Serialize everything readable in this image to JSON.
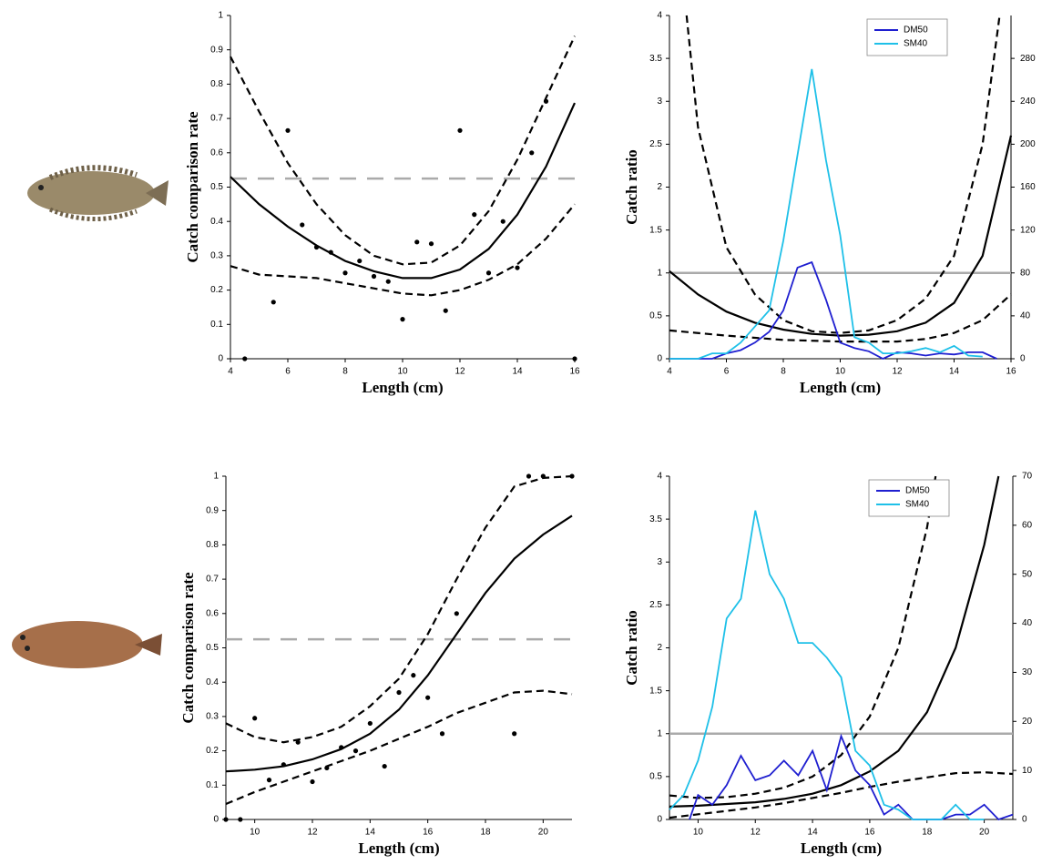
{
  "chart_data": [
    {
      "type": "scatter",
      "xlabel": "Length (cm)",
      "ylabel": "Catch comparison rate",
      "xlim": [
        4,
        16
      ],
      "xticks": [
        4,
        6,
        8,
        10,
        12,
        14,
        16
      ],
      "ylim": [
        0,
        1
      ],
      "yticks": [
        0,
        0.1,
        0.2,
        0.3,
        0.4,
        0.5,
        0.6,
        0.7,
        0.8,
        0.9,
        1
      ],
      "hline": {
        "value": 0.525,
        "color": "#aaaaaa",
        "dash": true
      },
      "series": [
        {
          "mode": "markers",
          "color": "#000000",
          "x": [
            4.5,
            5.5,
            6,
            6.5,
            7,
            7.5,
            8,
            8.5,
            9,
            9.5,
            10,
            10.5,
            11,
            11.5,
            12,
            12.5,
            13,
            13.5,
            14,
            14.5,
            15,
            16
          ],
          "values": [
            0,
            0.165,
            0.665,
            0.39,
            0.325,
            0.31,
            0.25,
            0.285,
            0.24,
            0.225,
            0.115,
            0.34,
            0.335,
            0.14,
            0.665,
            0.42,
            0.25,
            0.4,
            0.265,
            0.6,
            0.75,
            0
          ]
        },
        {
          "mode": "lines",
          "dash": false,
          "color": "#000000",
          "x": [
            4,
            5,
            6,
            7,
            8,
            9,
            10,
            11,
            12,
            13,
            14,
            15,
            16
          ],
          "values": [
            0.53,
            0.45,
            0.385,
            0.33,
            0.285,
            0.255,
            0.235,
            0.235,
            0.26,
            0.32,
            0.42,
            0.56,
            0.745
          ]
        },
        {
          "mode": "lines",
          "dash": true,
          "color": "#000000",
          "x": [
            4,
            5,
            6,
            7,
            8,
            9,
            10,
            11,
            12,
            13,
            14,
            15,
            16
          ],
          "values": [
            0.88,
            0.72,
            0.57,
            0.45,
            0.36,
            0.3,
            0.275,
            0.28,
            0.33,
            0.43,
            0.58,
            0.76,
            0.94
          ]
        },
        {
          "mode": "lines",
          "dash": true,
          "color": "#000000",
          "x": [
            4,
            5,
            6,
            7,
            8,
            9,
            10,
            11,
            12,
            13,
            14,
            15,
            16
          ],
          "values": [
            0.27,
            0.245,
            0.24,
            0.235,
            0.22,
            0.205,
            0.19,
            0.185,
            0.2,
            0.23,
            0.275,
            0.35,
            0.45
          ]
        }
      ]
    },
    {
      "type": "line",
      "xlabel": "Length (cm)",
      "ylabel": "Catch ratio",
      "xlim": [
        4,
        16
      ],
      "xticks": [
        4,
        6,
        8,
        10,
        12,
        14,
        16
      ],
      "ylim": [
        0,
        4
      ],
      "yticks": [
        0,
        0.5,
        1,
        1.5,
        2,
        2.5,
        3,
        3.5,
        4
      ],
      "y2lim": [
        0,
        320
      ],
      "y2ticks": [
        0,
        40,
        80,
        120,
        160,
        200,
        240,
        280
      ],
      "hline": {
        "value": 1,
        "color": "#aaaaaa",
        "dash": false
      },
      "legend": "upper right",
      "series": [
        {
          "mode": "lines",
          "dash": false,
          "color": "#000000",
          "x": [
            4,
            5,
            6,
            7,
            8,
            9,
            10,
            11,
            12,
            13,
            14,
            15,
            16
          ],
          "values": [
            1.02,
            0.75,
            0.55,
            0.42,
            0.34,
            0.29,
            0.27,
            0.28,
            0.32,
            0.42,
            0.65,
            1.2,
            2.6
          ]
        },
        {
          "mode": "lines",
          "dash": true,
          "color": "#000000",
          "x": [
            4.6,
            5,
            6,
            7,
            8,
            9,
            10,
            11,
            12,
            13,
            14,
            15,
            15.6
          ],
          "values": [
            4,
            2.7,
            1.3,
            0.75,
            0.45,
            0.32,
            0.3,
            0.33,
            0.45,
            0.7,
            1.2,
            2.5,
            4
          ]
        },
        {
          "mode": "lines",
          "dash": true,
          "color": "#000000",
          "x": [
            4,
            6,
            8,
            10,
            12,
            13,
            14,
            15,
            16
          ],
          "values": [
            0.33,
            0.27,
            0.22,
            0.2,
            0.2,
            0.23,
            0.3,
            0.45,
            0.75
          ]
        },
        {
          "name": "DM50",
          "mode": "lines",
          "dash": false,
          "axis": "y2",
          "color": "#1f1fd0",
          "x": [
            4,
            5,
            5.5,
            6,
            6.5,
            7,
            7.5,
            8,
            8.5,
            9,
            9.5,
            10,
            10.5,
            11,
            11.5,
            12,
            12.5,
            13,
            13.5,
            14,
            14.5,
            15,
            15.5
          ],
          "values": [
            0,
            0,
            0,
            5,
            8,
            15,
            25,
            45,
            85,
            90,
            55,
            15,
            10,
            7,
            0,
            6,
            5,
            3,
            5,
            4,
            6,
            6,
            0
          ]
        },
        {
          "name": "SM40",
          "mode": "lines",
          "dash": false,
          "axis": "y2",
          "color": "#1ec0e8",
          "x": [
            4,
            4.5,
            5,
            5.5,
            6,
            6.5,
            7,
            7.5,
            8,
            8.5,
            9,
            9.5,
            10,
            10.5,
            11,
            11.5,
            12,
            12.5,
            13,
            13.5,
            14,
            14.5,
            15
          ],
          "values": [
            0,
            0,
            0,
            5,
            5,
            15,
            30,
            45,
            110,
            190,
            270,
            185,
            115,
            20,
            15,
            5,
            5,
            7,
            10,
            6,
            12,
            3,
            2
          ]
        }
      ]
    },
    {
      "type": "scatter",
      "xlabel": "Length (cm)",
      "ylabel": "Catch comparison rate",
      "xlim": [
        9,
        21
      ],
      "xticks": [
        10,
        12,
        14,
        16,
        18,
        20
      ],
      "ylim": [
        0,
        1
      ],
      "yticks": [
        0,
        0.1,
        0.2,
        0.3,
        0.4,
        0.5,
        0.6,
        0.7,
        0.8,
        0.9,
        1
      ],
      "hline": {
        "value": 0.525,
        "color": "#aaaaaa",
        "dash": true
      },
      "series": [
        {
          "mode": "markers",
          "color": "#000000",
          "x": [
            9,
            9.5,
            10,
            10.5,
            11,
            11.5,
            12,
            12.5,
            13,
            13.5,
            14,
            14.5,
            15,
            15.5,
            16,
            16.5,
            17,
            19,
            19.5,
            20,
            21
          ],
          "values": [
            0,
            0,
            0.295,
            0.115,
            0.16,
            0.225,
            0.11,
            0.15,
            0.21,
            0.2,
            0.28,
            0.155,
            0.37,
            0.42,
            0.355,
            0.25,
            0.6,
            0.25,
            1,
            1,
            1
          ]
        },
        {
          "mode": "lines",
          "dash": false,
          "color": "#000000",
          "x": [
            9,
            10,
            11,
            12,
            13,
            14,
            15,
            16,
            17,
            18,
            19,
            20,
            21
          ],
          "values": [
            0.14,
            0.145,
            0.155,
            0.175,
            0.205,
            0.25,
            0.32,
            0.42,
            0.54,
            0.66,
            0.76,
            0.83,
            0.885
          ]
        },
        {
          "mode": "lines",
          "dash": true,
          "color": "#000000",
          "x": [
            9,
            10,
            11,
            12,
            13,
            14,
            15,
            16,
            17,
            18,
            19,
            20,
            21
          ],
          "values": [
            0.28,
            0.24,
            0.225,
            0.24,
            0.27,
            0.33,
            0.41,
            0.54,
            0.7,
            0.85,
            0.97,
            0.995,
            1
          ]
        },
        {
          "mode": "lines",
          "dash": true,
          "color": "#000000",
          "x": [
            9,
            10,
            11,
            12,
            13,
            14,
            15,
            16,
            17,
            18,
            19,
            20,
            21
          ],
          "values": [
            0.045,
            0.08,
            0.11,
            0.14,
            0.17,
            0.2,
            0.235,
            0.27,
            0.31,
            0.34,
            0.37,
            0.375,
            0.365
          ]
        }
      ]
    },
    {
      "type": "line",
      "xlabel": "Length (cm)",
      "ylabel": "Catch ratio",
      "xlim": [
        9,
        21
      ],
      "xticks": [
        10,
        12,
        14,
        16,
        18,
        20
      ],
      "ylim": [
        0,
        4
      ],
      "yticks": [
        0,
        0.5,
        1,
        1.5,
        2,
        2.5,
        3,
        3.5,
        4
      ],
      "y2lim": [
        0,
        70
      ],
      "y2ticks": [
        0,
        10,
        20,
        30,
        40,
        50,
        60,
        70
      ],
      "hline": {
        "value": 1,
        "color": "#aaaaaa",
        "dash": false
      },
      "legend": "upper right",
      "series": [
        {
          "mode": "lines",
          "dash": false,
          "color": "#000000",
          "x": [
            9,
            10,
            11,
            12,
            13,
            14,
            15,
            16,
            17,
            18,
            19,
            20,
            20.5
          ],
          "values": [
            0.15,
            0.16,
            0.18,
            0.2,
            0.24,
            0.3,
            0.4,
            0.56,
            0.8,
            1.25,
            2,
            3.2,
            4
          ]
        },
        {
          "mode": "lines",
          "dash": true,
          "color": "#000000",
          "x": [
            9,
            10,
            11,
            12,
            13,
            14,
            15,
            16,
            17,
            18,
            18.3
          ],
          "values": [
            0.28,
            0.25,
            0.26,
            0.3,
            0.37,
            0.5,
            0.75,
            1.2,
            2,
            3.4,
            4
          ]
        },
        {
          "mode": "lines",
          "dash": true,
          "color": "#000000",
          "x": [
            9,
            10,
            11,
            12,
            13,
            14,
            15,
            16,
            17,
            18,
            19,
            20,
            21
          ],
          "values": [
            0.02,
            0.06,
            0.1,
            0.14,
            0.19,
            0.25,
            0.31,
            0.38,
            0.44,
            0.49,
            0.54,
            0.55,
            0.53
          ]
        },
        {
          "name": "DM50",
          "mode": "lines",
          "dash": false,
          "axis": "y2",
          "color": "#1f1fd0",
          "x": [
            9.7,
            10,
            10.5,
            11,
            11.5,
            12,
            12.5,
            13,
            13.5,
            14,
            14.5,
            15,
            15.5,
            16,
            16.5,
            17,
            17.5,
            18,
            18.5,
            19,
            19.5,
            20,
            20.5,
            21
          ],
          "values": [
            0,
            5,
            3,
            7,
            13,
            8,
            9,
            12,
            9,
            14,
            6,
            17,
            10,
            7,
            1,
            3,
            0,
            0,
            0,
            1,
            1,
            3,
            0,
            1
          ]
        },
        {
          "name": "SM40",
          "mode": "lines",
          "dash": false,
          "axis": "y2",
          "color": "#1ec0e8",
          "x": [
            9,
            9.5,
            10,
            10.5,
            11,
            11.5,
            12,
            12.5,
            13,
            13.5,
            14,
            14.5,
            15,
            15.5,
            16,
            16.5,
            17,
            17.5,
            18,
            18.5,
            19,
            19.5,
            20
          ],
          "values": [
            2,
            5,
            12,
            23,
            41,
            45,
            63,
            50,
            45,
            36,
            36,
            33,
            29,
            14,
            11,
            3,
            2,
            0,
            0,
            0,
            3,
            0,
            0
          ]
        }
      ]
    }
  ]
}
